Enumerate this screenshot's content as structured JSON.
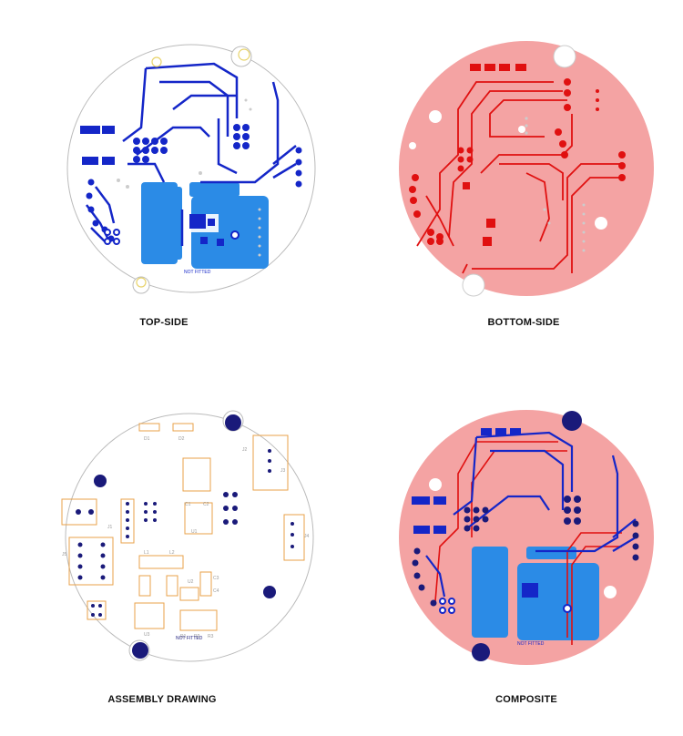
{
  "panels": {
    "top": {
      "caption": "TOP-SIDE",
      "note": "NOT FITTED"
    },
    "bottom": {
      "caption": "BOTTOM-SIDE"
    },
    "assembly": {
      "caption": "ASSEMBLY DRAWING",
      "note": "NOT FITTED",
      "refs": {
        "d1": "D1",
        "d2": "D2",
        "j1": "J1",
        "j2": "J2",
        "j3": "J3",
        "j4": "J4",
        "j5": "J5",
        "u1": "U1",
        "u2": "U2",
        "u3": "U3",
        "l1": "L1",
        "l2": "L2",
        "c1": "C1",
        "c2": "C2",
        "c3": "C3",
        "c4": "C4",
        "r1": "R1",
        "r2": "R2",
        "r3": "R3"
      }
    },
    "composite": {
      "caption": "COMPOSITE",
      "note": "NOT FITTED"
    }
  },
  "colors": {
    "top_copper": "#1426c8",
    "top_pour": "#2b8be6",
    "bottom_fill": "#f4a3a3",
    "bottom_trace": "#e01010",
    "silk": "#e8a24a",
    "pad_dark": "#1a1a7a",
    "outline": "#bbbbbb"
  }
}
